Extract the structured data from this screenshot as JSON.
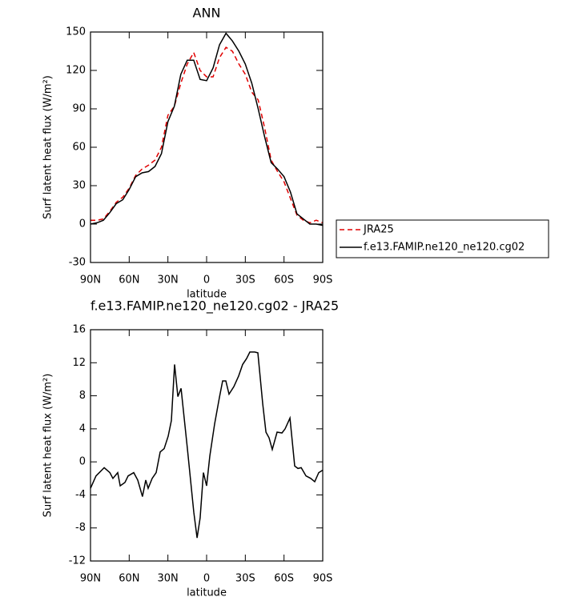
{
  "chart_data": [
    {
      "type": "line",
      "title": "ANN",
      "x_label": "latitude",
      "y_label": "Surf latent heat flux (W/m²)",
      "x": [
        90,
        85,
        80,
        75,
        70,
        65,
        60,
        55,
        50,
        45,
        40,
        35,
        30,
        25,
        20,
        15,
        10,
        5,
        0,
        -5,
        -10,
        -15,
        -20,
        -25,
        -30,
        -35,
        -40,
        -45,
        -50,
        -55,
        -60,
        -65,
        -70,
        -75,
        -80,
        -85,
        -90
      ],
      "series": [
        {
          "name": "JRA25",
          "color": "#e00000",
          "dashed": true,
          "values": [
            3,
            3,
            4,
            10,
            17,
            21,
            28,
            38,
            43,
            46,
            50,
            60,
            85,
            92,
            110,
            125,
            134,
            120,
            115,
            115,
            130,
            138,
            135,
            125,
            117,
            103,
            97,
            75,
            50,
            41,
            33,
            20,
            7,
            3,
            1,
            3,
            1
          ]
        },
        {
          "name": "f.e13.FAMIP.ne120_ne120.cg02",
          "color": "#000000",
          "dashed": false,
          "values": [
            0,
            1,
            3,
            9,
            16,
            19,
            27,
            37,
            40,
            41,
            45,
            55,
            80,
            92,
            117,
            128,
            128,
            113,
            112,
            122,
            140,
            149,
            143,
            135,
            125,
            110,
            90,
            68,
            48,
            43,
            37,
            25,
            8,
            4,
            0,
            0,
            -1
          ]
        }
      ],
      "xlim": [
        90,
        -90
      ],
      "xticks": [
        {
          "value": 90,
          "label": "90N"
        },
        {
          "value": 60,
          "label": "60N"
        },
        {
          "value": 30,
          "label": "30N"
        },
        0,
        {
          "value": -30,
          "label": "30S"
        },
        {
          "value": -60,
          "label": "60S"
        },
        {
          "value": -90,
          "label": "90S"
        }
      ],
      "ylim": [
        -30,
        150
      ],
      "yticks": [
        -30,
        0,
        30,
        60,
        90,
        120,
        150
      ],
      "legend": "right"
    },
    {
      "type": "line",
      "title": "f.e13.FAMIP.ne120_ne120.cg02 - JRA25",
      "x_label": "latitude",
      "y_label": "Surf latent heat flux (W/m²)",
      "x": [
        90,
        85.7,
        79.4,
        75,
        72.6,
        68.9,
        67,
        63.3,
        60.8,
        56.5,
        53.4,
        49.7,
        47.2,
        45.3,
        42.2,
        39.1,
        36,
        32.9,
        29.8,
        27.3,
        24.8,
        22.3,
        19.8,
        14.9,
        9.9,
        7.4,
        5,
        2.5,
        0,
        -2.5,
        -6.2,
        -9.9,
        -12.4,
        -14.9,
        -17.4,
        -21.1,
        -24.8,
        -27.9,
        -31,
        -33.5,
        -37.3,
        -39.7,
        -43.5,
        -46,
        -48.4,
        -50.9,
        -54.6,
        -58.4,
        -60.8,
        -64.6,
        -68.3,
        -70.8,
        -73.3,
        -77,
        -80.7,
        -83.8,
        -86.9,
        -90
      ],
      "values": [
        -3.2,
        -1.7,
        -0.7,
        -1.3,
        -2.0,
        -1.3,
        -2.9,
        -2.5,
        -1.7,
        -1.3,
        -2.2,
        -4.2,
        -2.2,
        -3.2,
        -2.0,
        -1.3,
        1.2,
        1.6,
        3.1,
        5.0,
        11.8,
        7.9,
        8.9,
        1.6,
        -6.1,
        -9.2,
        -6.8,
        -1.3,
        -2.9,
        0.7,
        4.6,
        7.8,
        9.8,
        9.8,
        8.2,
        9.1,
        10.4,
        11.8,
        12.5,
        13.3,
        13.3,
        13.2,
        7.0,
        3.6,
        2.9,
        1.5,
        3.6,
        3.5,
        4.0,
        5.3,
        -0.5,
        -0.8,
        -0.7,
        -1.7,
        -2.0,
        -2.4,
        -1.3,
        -1.0
      ],
      "color": "#000000",
      "xlim": [
        90,
        -90
      ],
      "xticks": [
        {
          "value": 90,
          "label": "90N"
        },
        {
          "value": 60,
          "label": "60N"
        },
        {
          "value": 30,
          "label": "30N"
        },
        0,
        {
          "value": -30,
          "label": "30S"
        },
        {
          "value": -60,
          "label": "60S"
        },
        {
          "value": -90,
          "label": "90S"
        }
      ],
      "ylim": [
        -12,
        16
      ],
      "yticks": [
        -12,
        -8,
        -4,
        0,
        4,
        8,
        12,
        16
      ]
    }
  ]
}
